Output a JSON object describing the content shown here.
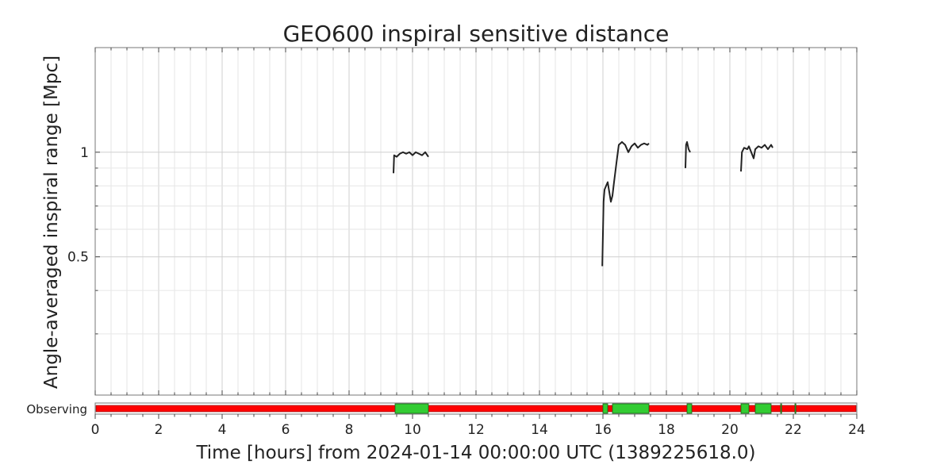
{
  "chart_data": {
    "type": "line",
    "title": "GEO600 inspiral sensitive distance",
    "ylabel": "Angle-averaged inspiral range [Mpc]",
    "xlabel": "Time [hours] from 2024-01-14 00:00:00 UTC (1389225618.0)",
    "xlim": [
      0,
      24
    ],
    "ylim": [
      0.2,
      2.0
    ],
    "yscale": "log",
    "grid": true,
    "x_ticks": [
      {
        "value": 0,
        "label": "0"
      },
      {
        "value": 2,
        "label": "2"
      },
      {
        "value": 4,
        "label": "4"
      },
      {
        "value": 6,
        "label": "6"
      },
      {
        "value": 8,
        "label": "8"
      },
      {
        "value": 10,
        "label": "10"
      },
      {
        "value": 12,
        "label": "12"
      },
      {
        "value": 14,
        "label": "14"
      },
      {
        "value": 16,
        "label": "16"
      },
      {
        "value": 18,
        "label": "18"
      },
      {
        "value": 20,
        "label": "20"
      },
      {
        "value": 22,
        "label": "22"
      },
      {
        "value": 24,
        "label": "24"
      }
    ],
    "y_ticks": [
      {
        "value": 0.5,
        "label": "0.5"
      },
      {
        "value": 1,
        "label": "1"
      }
    ],
    "series": [
      {
        "color": "#222222",
        "segments": [
          [
            [
              9.4,
              0.87
            ],
            [
              9.42,
              0.98
            ],
            [
              9.5,
              0.97
            ],
            [
              9.6,
              0.99
            ],
            [
              9.7,
              1.0
            ],
            [
              9.8,
              0.99
            ],
            [
              9.9,
              1.0
            ],
            [
              10.0,
              0.98
            ],
            [
              10.1,
              1.0
            ],
            [
              10.2,
              0.99
            ],
            [
              10.3,
              0.98
            ],
            [
              10.4,
              1.0
            ],
            [
              10.5,
              0.97
            ]
          ],
          [
            [
              15.98,
              0.47
            ],
            [
              16.02,
              0.72
            ],
            [
              16.05,
              0.78
            ],
            [
              16.1,
              0.8
            ],
            [
              16.15,
              0.82
            ],
            [
              16.25,
              0.72
            ],
            [
              16.3,
              0.75
            ],
            [
              16.35,
              0.82
            ],
            [
              16.45,
              0.97
            ],
            [
              16.5,
              1.05
            ],
            [
              16.6,
              1.07
            ],
            [
              16.7,
              1.05
            ],
            [
              16.8,
              1.0
            ],
            [
              16.9,
              1.04
            ],
            [
              17.0,
              1.06
            ],
            [
              17.1,
              1.03
            ],
            [
              17.2,
              1.05
            ],
            [
              17.3,
              1.06
            ],
            [
              17.4,
              1.05
            ],
            [
              17.45,
              1.06
            ]
          ],
          [
            [
              18.6,
              0.9
            ],
            [
              18.62,
              1.05
            ],
            [
              18.65,
              1.07
            ],
            [
              18.7,
              1.02
            ],
            [
              18.75,
              1.0
            ]
          ],
          [
            [
              20.35,
              0.88
            ],
            [
              20.38,
              1.0
            ],
            [
              20.45,
              1.03
            ],
            [
              20.55,
              1.02
            ],
            [
              20.6,
              1.04
            ],
            [
              20.75,
              0.96
            ],
            [
              20.8,
              1.02
            ],
            [
              20.9,
              1.04
            ],
            [
              21.0,
              1.03
            ],
            [
              21.1,
              1.05
            ],
            [
              21.2,
              1.02
            ],
            [
              21.3,
              1.05
            ],
            [
              21.35,
              1.03
            ]
          ]
        ]
      }
    ],
    "segment_bar": {
      "label": "Observing",
      "off_color": "#ff0000",
      "on_color": "#33cc33",
      "on_segments": [
        [
          9.45,
          10.5
        ],
        [
          16.0,
          16.15
        ],
        [
          16.3,
          17.45
        ],
        [
          18.65,
          18.8
        ],
        [
          20.35,
          20.6
        ],
        [
          20.8,
          21.3
        ],
        [
          21.6,
          21.62
        ],
        [
          22.05,
          22.07
        ]
      ]
    }
  }
}
